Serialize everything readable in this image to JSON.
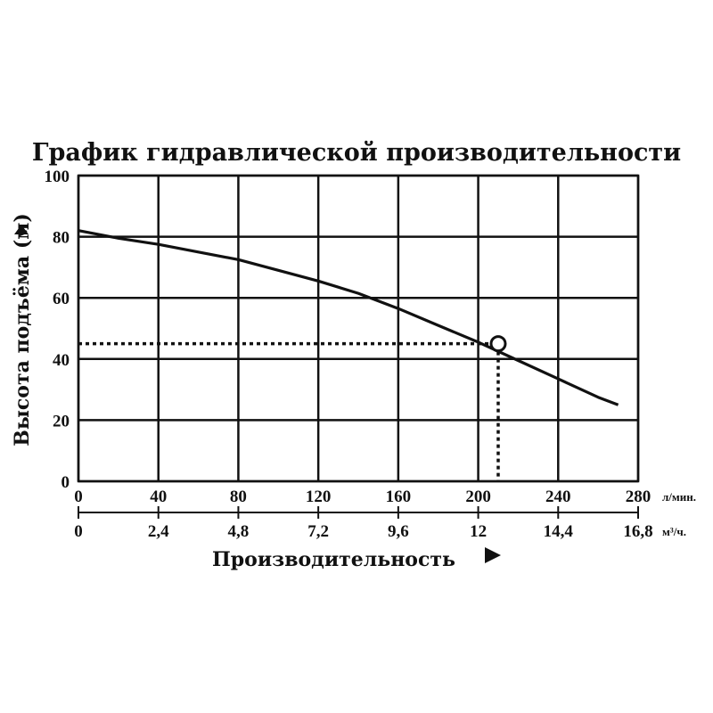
{
  "chart_data": {
    "type": "line",
    "title": "График гидравлической производительности",
    "ylabel": "Высота подъёма (м)",
    "xlabel": "Производительность",
    "ylim": [
      0,
      100
    ],
    "xlim": [
      0,
      280
    ],
    "y_ticks": [
      "0",
      "20",
      "40",
      "60",
      "80",
      "100"
    ],
    "y_tick_values": [
      0,
      20,
      40,
      60,
      80,
      100
    ],
    "x_ticks_primary": [
      "0",
      "40",
      "80",
      "120",
      "160",
      "200",
      "240",
      "280"
    ],
    "x_tick_values_primary": [
      0,
      40,
      80,
      120,
      160,
      200,
      240,
      280
    ],
    "x_unit_primary": "л/мин.",
    "x_ticks_secondary": [
      "0",
      "2,4",
      "4,8",
      "7,2",
      "9,6",
      "12",
      "14,4",
      "16,8"
    ],
    "x_unit_secondary": "м³/ч.",
    "grid": true,
    "series": [
      {
        "x": [
          0,
          20,
          40,
          60,
          80,
          100,
          120,
          140,
          160,
          180,
          200,
          220,
          240,
          260,
          270
        ],
        "y": [
          82,
          79.5,
          77.5,
          75,
          72.5,
          69,
          65.5,
          61.5,
          56.5,
          51,
          45.5,
          39.5,
          33.5,
          27.5,
          25
        ]
      }
    ],
    "operating_point": {
      "x": 210,
      "y": 45
    },
    "colors": {
      "line": "#111111",
      "grid": "#111111"
    }
  }
}
